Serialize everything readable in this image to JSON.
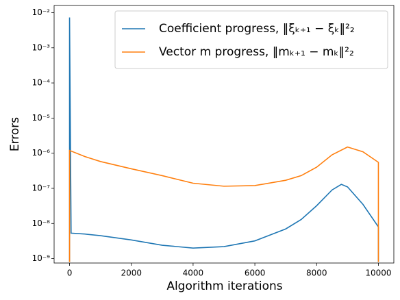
{
  "chart_data": {
    "type": "line",
    "xlabel": "Algorithm iterations",
    "ylabel": "Errors",
    "xlim": [
      -500,
      10500
    ],
    "xticks": [
      0,
      2000,
      4000,
      6000,
      8000,
      10000
    ],
    "ylim": [
      7.5e-10,
      0.016
    ],
    "log_y": true,
    "yticks": [
      {
        "value": 1e-09,
        "label": "10⁻⁹"
      },
      {
        "value": 1e-08,
        "label": "10⁻⁸"
      },
      {
        "value": 1e-07,
        "label": "10⁻⁷"
      },
      {
        "value": 1e-06,
        "label": "10⁻⁶"
      },
      {
        "value": 1e-05,
        "label": "10⁻⁵"
      },
      {
        "value": 0.0001,
        "label": "10⁻⁴"
      },
      {
        "value": 0.001,
        "label": "10⁻³"
      },
      {
        "value": 0.01,
        "label": "10⁻²"
      }
    ],
    "legend": "upper right",
    "series": [
      {
        "name": "Coefficient progress, ‖ξₖ₊₁ − ξₖ‖²₂",
        "color": "#1f77b4",
        "x": [
          0,
          0,
          50,
          500,
          1000,
          2000,
          3000,
          4000,
          5000,
          6000,
          7000,
          7500,
          8000,
          8500,
          8800,
          9000,
          9500,
          10000,
          10000
        ],
        "values": [
          8e-10,
          0.0073,
          5.3e-09,
          5e-09,
          4.5e-09,
          3.4e-09,
          2.4e-09,
          2e-09,
          2.2e-09,
          3.2e-09,
          7e-09,
          1.3e-08,
          3.2e-08,
          9e-08,
          1.3e-07,
          1.1e-07,
          3.5e-08,
          8e-09,
          8e-10
        ]
      },
      {
        "name": "Vector m progress, ‖mₖ₊₁ − mₖ‖²₂",
        "color": "#ff7f0e",
        "x": [
          0,
          0,
          500,
          1000,
          2000,
          3000,
          4000,
          5000,
          6000,
          7000,
          7500,
          8000,
          8500,
          9000,
          9500,
          10000,
          10000
        ],
        "values": [
          8e-10,
          1.2e-06,
          8e-07,
          5.8e-07,
          3.6e-07,
          2.3e-07,
          1.4e-07,
          1.15e-07,
          1.2e-07,
          1.7e-07,
          2.3e-07,
          4e-07,
          9e-07,
          1.5e-06,
          1.1e-06,
          5.5e-07,
          8e-10
        ]
      }
    ]
  }
}
